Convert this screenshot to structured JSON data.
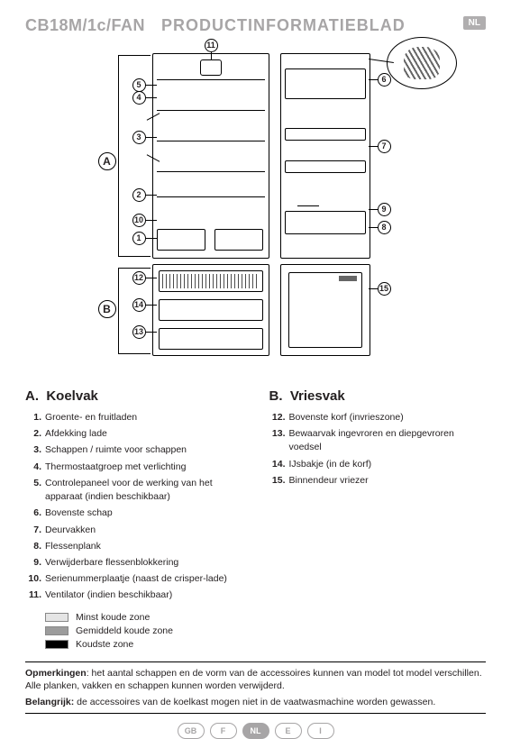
{
  "header": {
    "model": "CB18M/1c/FAN",
    "title": "PRODUCTINFORMATIEBLAD",
    "lang_badge": "NL"
  },
  "sections": {
    "A": {
      "letter": "A.",
      "title": "Koelvak"
    },
    "B": {
      "letter": "B.",
      "title": "Vriesvak"
    }
  },
  "itemsA": [
    {
      "n": "1.",
      "t": "Groente- en fruitladen"
    },
    {
      "n": "2.",
      "t": "Afdekking lade"
    },
    {
      "n": "3.",
      "t": "Schappen / ruimte voor schappen"
    },
    {
      "n": "4.",
      "t": "Thermostaatgroep met verlichting"
    },
    {
      "n": "5.",
      "t": "Controlepaneel voor de werking van het apparaat\n(indien beschikbaar)"
    },
    {
      "n": "6.",
      "t": "Bovenste schap"
    },
    {
      "n": "7.",
      "t": "Deurvakken"
    },
    {
      "n": "8.",
      "t": "Flessenplank"
    },
    {
      "n": "9.",
      "t": "Verwijderbare flessenblokkering"
    },
    {
      "n": "10.",
      "t": "Serienummerplaatje (naast de crisper-lade)"
    },
    {
      "n": "11.",
      "t": "Ventilator (indien beschikbaar)"
    }
  ],
  "itemsB": [
    {
      "n": "12.",
      "t": "Bovenste korf (invrieszone)"
    },
    {
      "n": "13.",
      "t": "Bewaarvak ingevroren en diepgevroren voedsel"
    },
    {
      "n": "14.",
      "t": "IJsbakje (in de korf)"
    },
    {
      "n": "15.",
      "t": "Binnendeur vriezer"
    }
  ],
  "zones": {
    "least": {
      "label": "Minst koude zone",
      "color": "#e5e5e5"
    },
    "mid": {
      "label": "Gemiddeld koude zone",
      "color": "#9c9c9c"
    },
    "most": {
      "label": "Koudste zone",
      "color": "#000000"
    }
  },
  "notes": {
    "remark_label": "Opmerkingen",
    "remark_text": ": het aantal schappen en de vorm van de accessoires kunnen van model tot model verschillen. Alle planken, vakken en schappen kunnen worden verwijderd.",
    "important_label": "Belangrijk:",
    "important_text": " de accessoires van de koelkast mogen niet in de vaatwasmachine worden gewassen."
  },
  "footer": {
    "langs": [
      "GB",
      "F",
      "NL",
      "E",
      "I"
    ],
    "active": "NL"
  },
  "callouts": {
    "1": "1",
    "2": "2",
    "3": "3",
    "4": "4",
    "5": "5",
    "6": "6",
    "7": "7",
    "8": "8",
    "9": "9",
    "10": "10",
    "11": "11",
    "12": "12",
    "13": "13",
    "14": "14",
    "15": "15",
    "A": "A",
    "B": "B"
  }
}
